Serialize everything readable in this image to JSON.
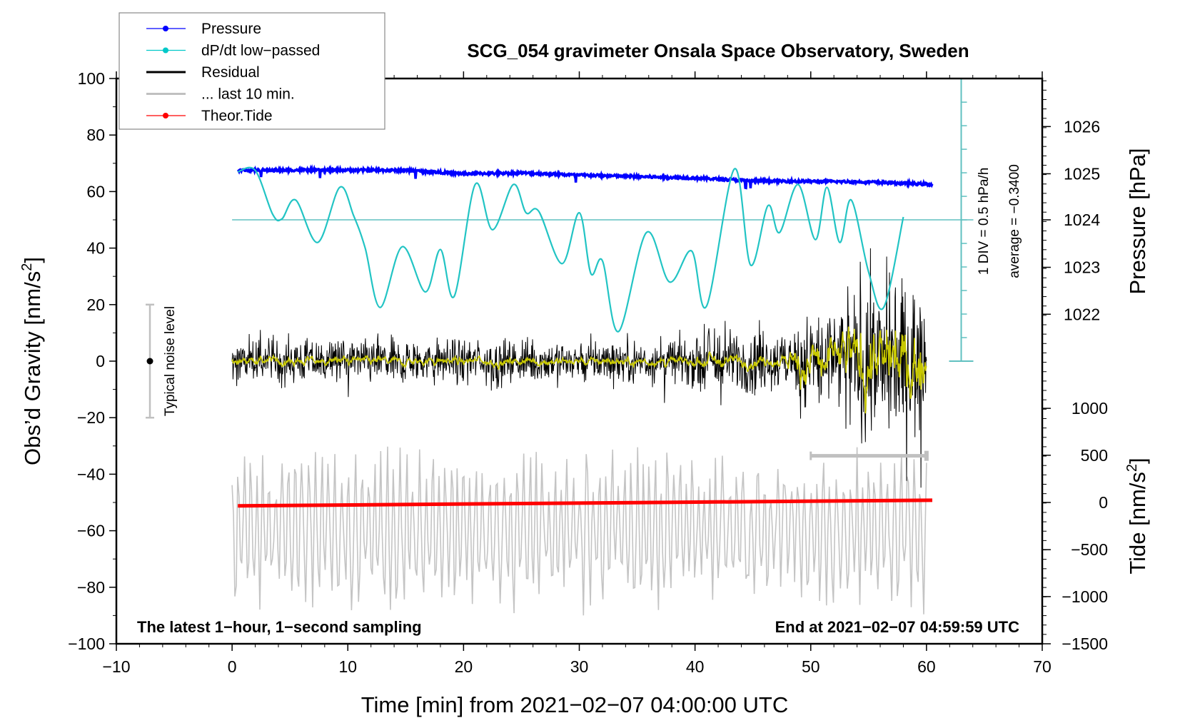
{
  "chart_data": {
    "type": "line",
    "title": "SCG_054 gravimeter Onsala Space Observatory, Sweden",
    "xlabel": "Time [min] from 2021−02−07 04:00:00 UTC",
    "ylabel_left": "Obs’d Gravity [nm/s²]",
    "ylabel_left_parts": {
      "main": "Obs’d Gravity [nm/s",
      "sup": "2",
      "end": "]"
    },
    "ylabel_right_pressure": "Pressure [hPa]",
    "ylabel_right_tide_parts": {
      "main": "Tide [nm/s",
      "sup": "2",
      "end": "]"
    },
    "xlim": [
      -10,
      70
    ],
    "ylim": [
      -100,
      100
    ],
    "x_ticks": [
      -10,
      0,
      10,
      20,
      30,
      40,
      50,
      60,
      70
    ],
    "x_tick_labels": [
      "−10",
      "0",
      "10",
      "20",
      "30",
      "40",
      "50",
      "60",
      "70"
    ],
    "y_ticks": [
      100,
      80,
      60,
      40,
      20,
      0,
      -20,
      -40,
      -60,
      -80,
      -100
    ],
    "y_tick_labels": [
      "100",
      "80",
      "60",
      "40",
      "20",
      "0",
      "−20",
      "−40",
      "−60",
      "−80",
      "−100"
    ],
    "pressure_axis": {
      "ticks": [
        1026,
        1025,
        1024,
        1023,
        1022
      ],
      "tick_labels": [
        "1026",
        "1025",
        "1024",
        "1023",
        "1022"
      ],
      "gravity_equiv": [
        83,
        66.3,
        50,
        33.2,
        16.6
      ]
    },
    "tide_axis": {
      "ticks": [
        1000,
        500,
        0,
        -500,
        -1000,
        -1500
      ],
      "tick_labels": [
        "1000",
        "500",
        "0",
        "−500",
        "−1000",
        "−1500"
      ],
      "gravity_equiv": [
        -16.7,
        -33.3,
        -50,
        -66.7,
        -83.3,
        -100
      ]
    },
    "legend": {
      "placement": "top-left",
      "entries": [
        {
          "label": "Pressure",
          "color": "#0000ff",
          "marker": true
        },
        {
          "label": "dP/dt low−passed",
          "color": "#00c8c8",
          "marker": true
        },
        {
          "label": "Residual",
          "color": "#000000",
          "marker": false
        },
        {
          "label": "... last 10 min.",
          "color": "#c0c0c0",
          "marker": false
        },
        {
          "label": "Theor.Tide",
          "color": "#ff0000",
          "marker": true
        }
      ]
    },
    "annotations": {
      "bottom_left": "The latest 1−hour, 1−second sampling",
      "bottom_right": "End at 2021−02−07 04:59:59 UTC",
      "div_label": "1 DIV = 0.5 hPa/h",
      "average_label": "average = −0.3400",
      "noise_label": "Typical noise level",
      "noise_range": [
        -20,
        20
      ]
    },
    "dpdt_axis": {
      "x": 63,
      "range": [
        0,
        100
      ],
      "zero_line": 50,
      "div": 0.5,
      "unit": "hPa/h"
    },
    "series": [
      {
        "name": "Pressure",
        "color": "#0000ff",
        "x": [
          0.5,
          5,
          10,
          15,
          20,
          25,
          30,
          35,
          40,
          45,
          50,
          55,
          60.5
        ],
        "values": [
          67.5,
          67.6,
          67.6,
          67.5,
          66.3,
          66.6,
          65.8,
          65.3,
          64.8,
          63.8,
          63.6,
          63.4,
          62.5
        ]
      },
      {
        "name": "dP/dt low-passed",
        "color": "#22c4c4",
        "x": [
          0.5,
          2.0,
          3.5,
          4.3,
          5.5,
          7.4,
          9.3,
          10.5,
          11.5,
          12.8,
          14.7,
          16.7,
          18.0,
          19.2,
          21.0,
          22.5,
          24.3,
          25.4,
          26.5,
          28.5,
          30.0,
          31.0,
          32.0,
          33.4,
          35.8,
          37.8,
          39.7,
          41.0,
          43.4,
          44.8,
          46.3,
          47.3,
          48.9,
          50.4,
          51.4,
          52.5,
          53.5,
          55.0,
          56.3,
          58.0
        ],
        "values": [
          67,
          67.5,
          52,
          50.3,
          57,
          42,
          61.5,
          51.5,
          40,
          19,
          40.5,
          24.5,
          39.5,
          23,
          62.5,
          46.5,
          62.5,
          52.5,
          53,
          34.5,
          52.5,
          31,
          35.5,
          10.5,
          45.5,
          28,
          39,
          19.5,
          68,
          34,
          55,
          45.5,
          62.5,
          43,
          61.5,
          42,
          57,
          31.5,
          19,
          51
        ]
      },
      {
        "name": "Residual",
        "color": "#000000",
        "x_range": [
          0,
          60
        ],
        "amplitude_nominal": 10,
        "amplitude_late": 35
      },
      {
        "name": "Residual low-passed",
        "color": "#cccc00",
        "x_range": [
          0,
          60
        ]
      },
      {
        "name": "... last 10 min.",
        "color": "#c0c0c0",
        "x_range": [
          0,
          60
        ],
        "center": -60,
        "amplitude": 35
      },
      {
        "name": "Theor.Tide",
        "color": "#ff0000",
        "x": [
          0.5,
          60.5
        ],
        "values": [
          -51.2,
          -49.2
        ]
      },
      {
        "name": "last 10 min bar",
        "color": "#c0c0c0",
        "x": [
          50,
          60
        ],
        "values": [
          -33.5,
          -33.5
        ]
      }
    ]
  }
}
